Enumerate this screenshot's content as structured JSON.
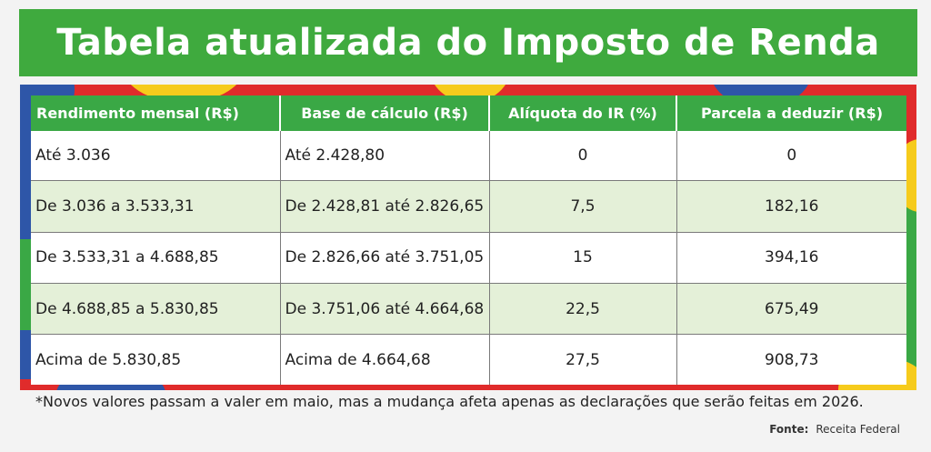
{
  "title": "Tabela atualizada do Imposto de Renda",
  "table": {
    "headers": [
      "Rendimento mensal (R$)",
      "Base de cálculo (R$)",
      "Alíquota do IR (%)",
      "Parcela a deduzir (R$)"
    ],
    "rows": [
      [
        "Até 3.036",
        "Até 2.428,80",
        "0",
        "0"
      ],
      [
        "De 3.036 a 3.533,31",
        "De 2.428,81 até 2.826,65",
        "7,5",
        "182,16"
      ],
      [
        "De 3.533,31 a 4.688,85",
        "De 2.826,66 até 3.751,05",
        "15",
        "394,16"
      ],
      [
        "De 4.688,85 a 5.830,85",
        "De 3.751,06 até 4.664,68",
        "22,5",
        "675,49"
      ],
      [
        "Acima de 5.830,85",
        "Acima de 4.664,68",
        "27,5",
        "908,73"
      ]
    ]
  },
  "footnote": "*Novos valores passam a valer em maio, mas a mudança afeta apenas as declarações que serão feitas em 2026.",
  "source": {
    "label": "Fonte:",
    "value": "Receita Federal"
  },
  "colors": {
    "green": "#3aa845",
    "light_green_row": "#e4f0d8",
    "yellow": "#f6cb1c",
    "blue": "#2e56a8",
    "red": "#e02b2b"
  }
}
